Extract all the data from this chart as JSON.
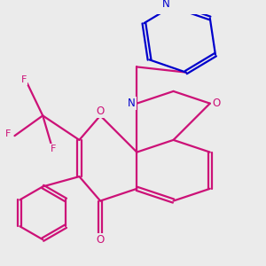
{
  "bg_color": "#ebebeb",
  "bond_color": "#cc1177",
  "O_color": "#cc1177",
  "N_color": "#0000cc",
  "F_color": "#cc1177",
  "lw": 1.6,
  "figsize": [
    3.0,
    3.0
  ],
  "dpi": 100,
  "xlim": [
    -2.2,
    3.8
  ],
  "ylim": [
    -3.0,
    3.0
  ]
}
